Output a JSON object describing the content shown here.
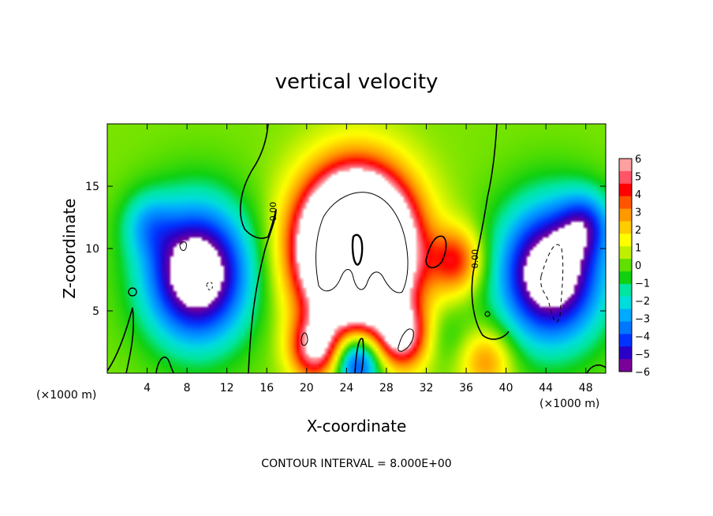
{
  "chart_data": {
    "type": "heatmap",
    "title": "vertical velocity",
    "xlabel": "X-coordinate",
    "ylabel": "Z-coordinate",
    "x_unit_left": "(×1000 m)",
    "x_unit_right": "(×1000 m)",
    "xlim": [
      0,
      50
    ],
    "ylim": [
      0,
      20
    ],
    "x_ticks": [
      4,
      8,
      12,
      16,
      20,
      24,
      28,
      32,
      36,
      40,
      44,
      48
    ],
    "y_ticks": [
      5,
      10,
      15
    ],
    "colorbar": {
      "ticks": [
        6,
        5,
        4,
        3,
        2,
        1,
        0,
        -1,
        -2,
        -3,
        -4,
        -5,
        -6
      ],
      "range": [
        -6,
        6
      ],
      "colors_low_to_high": [
        "#7a0099",
        "#2a00c8",
        "#0033ff",
        "#0077ff",
        "#00aaff",
        "#00dddd",
        "#00e6a0",
        "#10d010",
        "#60e000",
        "#c0f000",
        "#ffff00",
        "#ffcc00",
        "#ff9900",
        "#ff5500",
        "#ff0000",
        "#ff5566",
        "#ffa0a0"
      ]
    },
    "contour_labels": [
      "0.00",
      "0.00"
    ],
    "contour_interval_text": "CONTOUR INTERVAL = 8.000E+00",
    "features": [
      {
        "x": 25,
        "z": 10,
        "w": 22,
        "note": "central updraft, strong positive"
      },
      {
        "x": 9,
        "z": 8,
        "w": -8,
        "note": "left downdraft, strong negative"
      },
      {
        "x": 44.5,
        "z": 8,
        "w": -8,
        "note": "right downdraft, strong negative"
      },
      {
        "x": 21,
        "z": 2,
        "w": 6
      },
      {
        "x": 29.5,
        "z": 3,
        "w": 6
      },
      {
        "x": 35,
        "z": 9,
        "w": 4
      },
      {
        "x": 25,
        "z": 1,
        "w": -6
      },
      {
        "x": 4,
        "z": 12,
        "w": -2
      },
      {
        "x": 48,
        "z": 12,
        "w": -3
      },
      {
        "x": 34,
        "z": 3,
        "w": -1
      },
      {
        "x": 38,
        "z": 1,
        "w": 3
      }
    ]
  }
}
